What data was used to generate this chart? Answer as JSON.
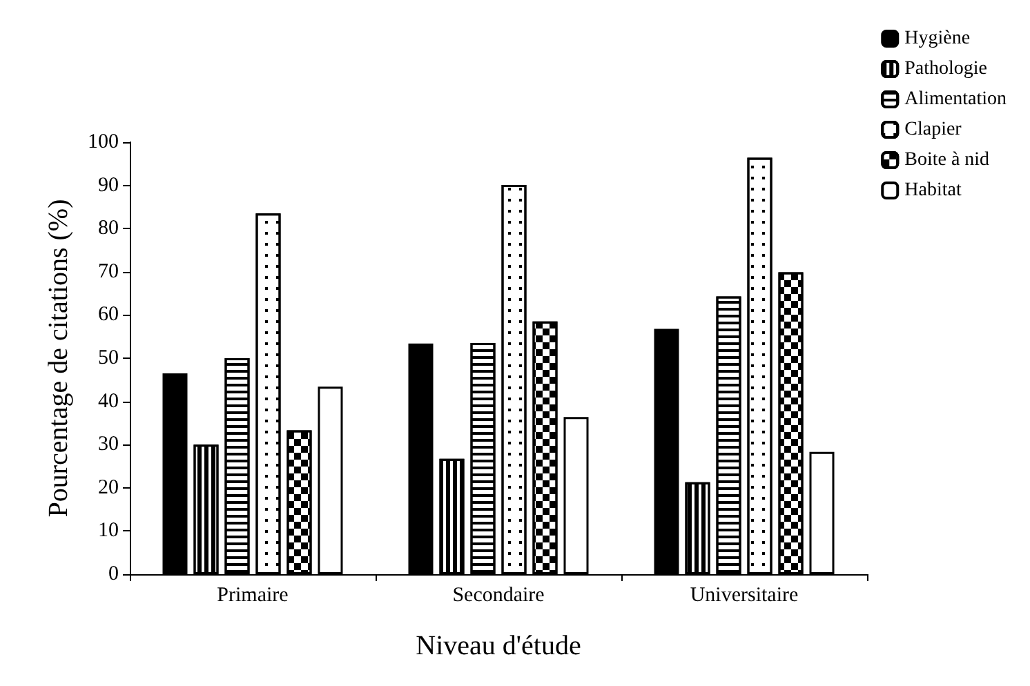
{
  "chart_data": {
    "type": "bar",
    "xlabel": "Niveau d'étude",
    "ylabel": "Pourcentage de citations (%)",
    "categories": [
      "Primaire",
      "Secondaire",
      "Universitaire"
    ],
    "series": [
      {
        "name": "Hygiène",
        "color": "#000000",
        "values": [
          46.5,
          53.4,
          56.8
        ]
      },
      {
        "name": "Pathologie",
        "color": "#ffffff",
        "values": [
          30,
          26.7,
          21.3
        ]
      },
      {
        "name": "Alimentation",
        "color": "#ffffff",
        "values": [
          50,
          53.5,
          64.3
        ]
      },
      {
        "name": "Clapier",
        "color": "#ffffff",
        "values": [
          83.5,
          90.1,
          96.4
        ]
      },
      {
        "name": "Boite à nid",
        "color": "#ffffff",
        "values": [
          33.3,
          58.5,
          69.9
        ]
      },
      {
        "name": "Habitat",
        "color": "#ffffff",
        "values": [
          43.4,
          36.4,
          28.3
        ]
      }
    ],
    "ylim": [
      0,
      100
    ],
    "yticks": [
      0,
      10,
      20,
      30,
      40,
      50,
      60,
      70,
      80,
      90,
      100
    ],
    "grid": false,
    "legend": "top right"
  }
}
